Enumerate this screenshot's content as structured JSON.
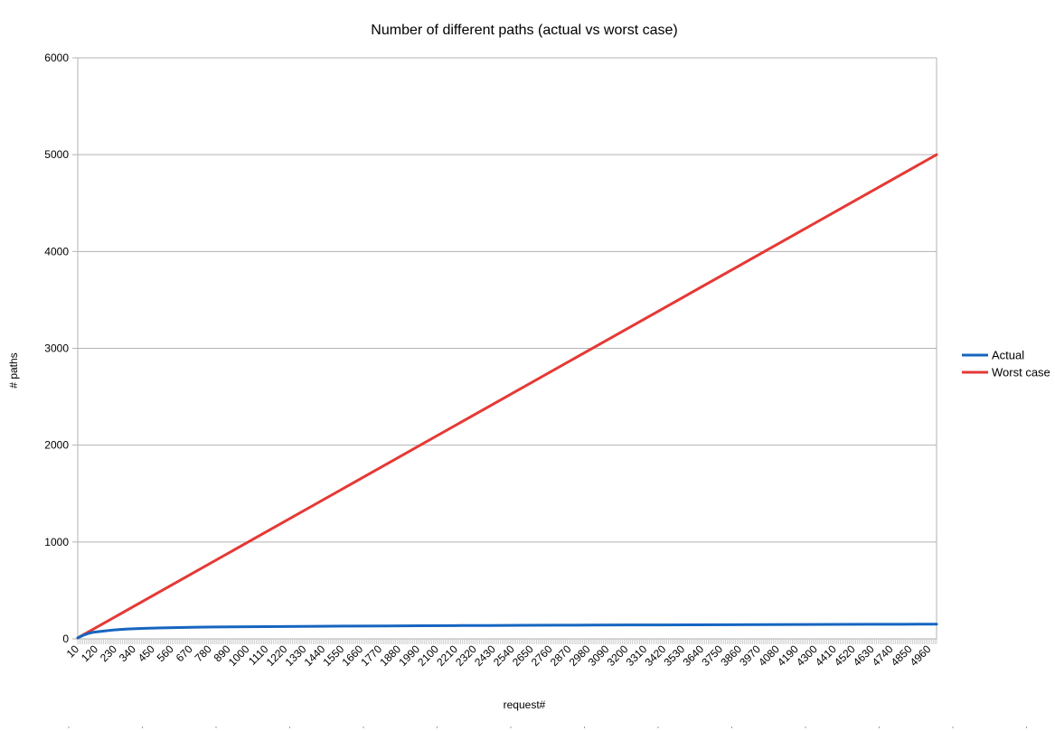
{
  "chart_data": {
    "type": "line",
    "title": "Number of different paths (actual vs worst case)",
    "xlabel": "request#",
    "ylabel": "# paths",
    "x_range": [
      10,
      5000
    ],
    "x_tick_labels": [
      "10",
      "120",
      "230",
      "340",
      "450",
      "560",
      "670",
      "780",
      "890",
      "1000",
      "1110",
      "1220",
      "1330",
      "1440",
      "1550",
      "1660",
      "1770",
      "1880",
      "1990",
      "2100",
      "2210",
      "2320",
      "2430",
      "2540",
      "2650",
      "2760",
      "2870",
      "2980",
      "3090",
      "3200",
      "3310",
      "3420",
      "3530",
      "3640",
      "3750",
      "3860",
      "3970",
      "4080",
      "4190",
      "4300",
      "4410",
      "4520",
      "4630",
      "4740",
      "4850",
      "4960"
    ],
    "y_ticks": [
      0,
      1000,
      2000,
      3000,
      4000,
      5000,
      6000
    ],
    "ylim": [
      0,
      6000
    ],
    "grid": "horizontal",
    "legend_position": "right",
    "series": [
      {
        "name": "Actual",
        "color": "#1565C0",
        "points": [
          [
            10,
            10
          ],
          [
            40,
            35
          ],
          [
            70,
            55
          ],
          [
            100,
            68
          ],
          [
            150,
            78
          ],
          [
            200,
            88
          ],
          [
            250,
            96
          ],
          [
            300,
            102
          ],
          [
            400,
            108
          ],
          [
            500,
            113
          ],
          [
            600,
            117
          ],
          [
            700,
            120
          ],
          [
            800,
            122
          ],
          [
            1000,
            125
          ],
          [
            1200,
            127
          ],
          [
            1400,
            130
          ],
          [
            1600,
            132
          ],
          [
            1800,
            133
          ],
          [
            2000,
            135
          ],
          [
            2200,
            137
          ],
          [
            2400,
            138
          ],
          [
            2600,
            140
          ],
          [
            2800,
            141
          ],
          [
            3000,
            142
          ],
          [
            3200,
            143
          ],
          [
            3400,
            144
          ],
          [
            3600,
            145
          ],
          [
            3800,
            146
          ],
          [
            4000,
            147
          ],
          [
            4200,
            148
          ],
          [
            4400,
            149
          ],
          [
            4600,
            150
          ],
          [
            4800,
            151
          ],
          [
            5000,
            152
          ]
        ]
      },
      {
        "name": "Worst case",
        "color": "#E53935",
        "points": [
          [
            10,
            10
          ],
          [
            5000,
            5000
          ]
        ]
      }
    ]
  }
}
